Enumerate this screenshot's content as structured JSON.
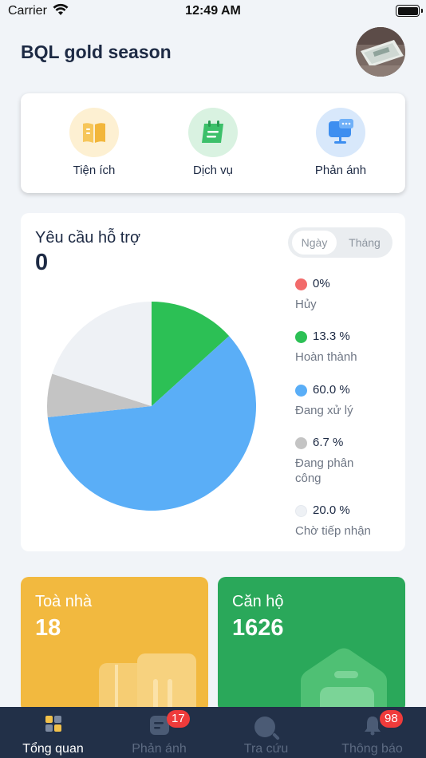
{
  "status_bar": {
    "carrier": "Carrier",
    "time": "12:49 AM"
  },
  "header": {
    "title": "BQL gold season"
  },
  "quick_actions": [
    {
      "label": "Tiện ích",
      "icon": "book-icon"
    },
    {
      "label": "Dịch vụ",
      "icon": "calendar-icon"
    },
    {
      "label": "Phản ánh",
      "icon": "feedback-monitor-icon"
    }
  ],
  "support": {
    "title": "Yêu cầu hỗ trợ",
    "count": "0",
    "toggle": {
      "options": [
        "Ngày",
        "Tháng"
      ],
      "selected": "Ngày"
    },
    "legend": [
      {
        "value": "0%",
        "label": "Hủy",
        "color": "#f26b6b"
      },
      {
        "value": "13.3 %",
        "label": "Hoàn thành",
        "color": "#2cc055"
      },
      {
        "value": "60.0 %",
        "label": "Đang xử lý",
        "color": "#5aaef7"
      },
      {
        "value": "6.7 %",
        "label": "Đang phân công",
        "color": "#c4c4c4"
      },
      {
        "value": "20.0 %",
        "label": "Chờ tiếp nhận",
        "color": "#eef1f5"
      }
    ]
  },
  "chart_data": {
    "type": "pie",
    "title": "Yêu cầu hỗ trợ",
    "categories": [
      "Hủy",
      "Hoàn thành",
      "Đang xử lý",
      "Đang phân công",
      "Chờ tiếp nhận"
    ],
    "values": [
      0,
      13.3,
      60.0,
      6.7,
      20.0
    ],
    "colors": [
      "#f26b6b",
      "#2cc055",
      "#5aaef7",
      "#c4c4c4",
      "#eef1f5"
    ]
  },
  "stats": {
    "building": {
      "label": "Toà nhà",
      "value": "18",
      "color": "#f2b93f"
    },
    "apartment": {
      "label": "Căn hộ",
      "value": "1626",
      "color": "#2aa85a"
    }
  },
  "tabs": [
    {
      "label": "Tổng quan",
      "icon": "dashboard-icon",
      "active": true,
      "badge": ""
    },
    {
      "label": "Phản ánh",
      "icon": "feedback-icon",
      "active": false,
      "badge": "17"
    },
    {
      "label": "Tra cứu",
      "icon": "search-icon",
      "active": false,
      "badge": ""
    },
    {
      "label": "Thông báo",
      "icon": "bell-icon",
      "active": false,
      "badge": "98"
    }
  ]
}
